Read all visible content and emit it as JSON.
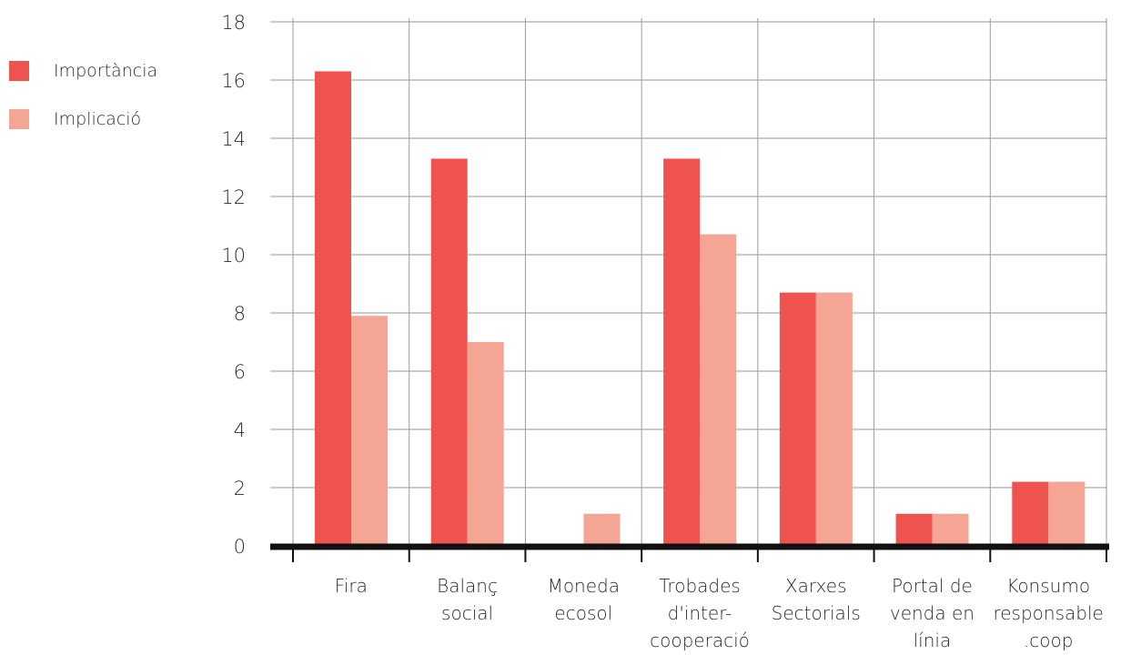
{
  "chart_data": {
    "type": "bar",
    "title": "",
    "xlabel": "",
    "ylabel": "",
    "categories": [
      [
        "Fira"
      ],
      [
        "Balanç",
        "social"
      ],
      [
        "Moneda",
        "ecosol"
      ],
      [
        "Trobades",
        "d'inter-",
        "cooperació"
      ],
      [
        "Xarxes",
        "Sectorials"
      ],
      [
        "Portal de",
        "venda en",
        "línia"
      ],
      [
        "Konsumo",
        "responsable",
        ".coop"
      ]
    ],
    "series": [
      {
        "name": "Importància",
        "color": "#ef5350",
        "values": [
          16.3,
          13.3,
          0,
          13.3,
          8.7,
          1.1,
          2.2
        ]
      },
      {
        "name": "Implicació",
        "color": "#f5a594",
        "values": [
          7.9,
          7.0,
          1.1,
          10.7,
          8.7,
          1.1,
          2.2
        ]
      }
    ],
    "ylim": [
      0,
      18
    ],
    "yticks": [
      "0",
      "2",
      "4",
      "6",
      "8",
      "10",
      "12",
      "14",
      "16",
      "18"
    ],
    "grid": true,
    "legend_position": "top-left"
  }
}
